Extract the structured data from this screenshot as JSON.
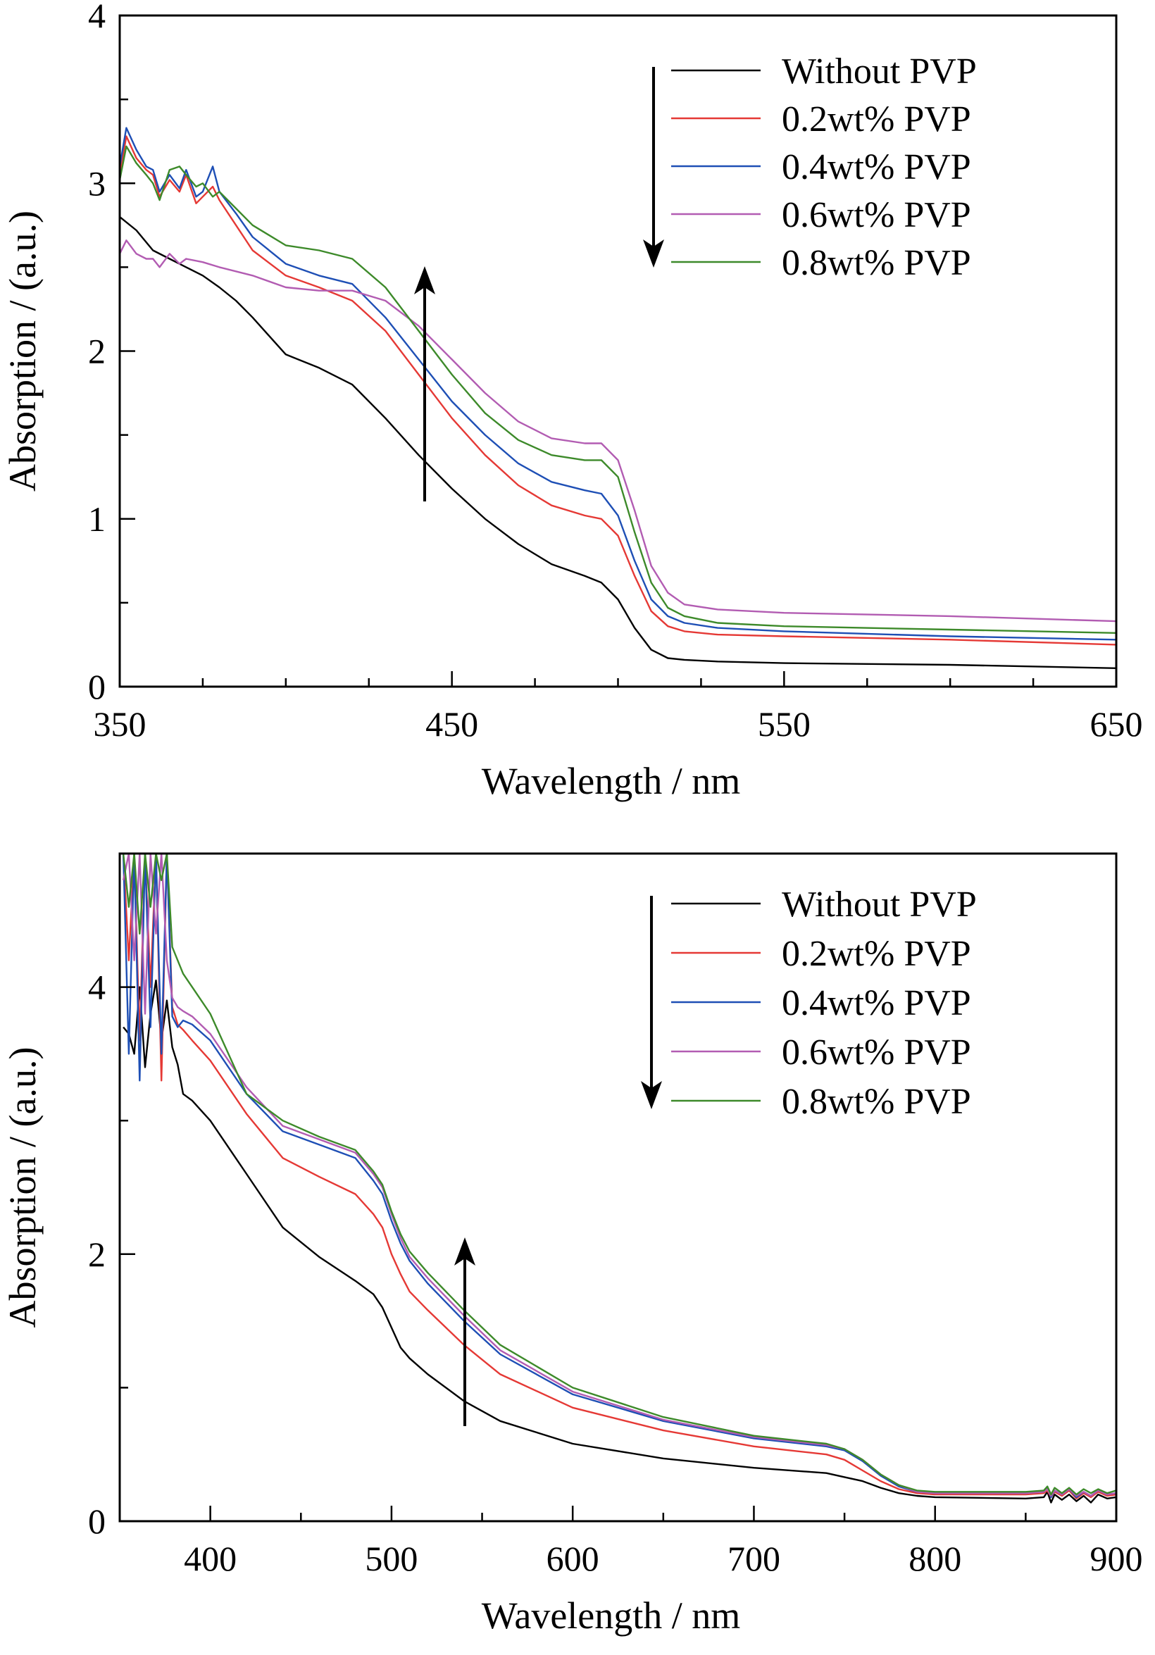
{
  "chart_data": [
    {
      "type": "line",
      "xlabel": "Wavelength / nm",
      "ylabel": "Absorption / (a.u.)",
      "xlim": [
        350,
        650
      ],
      "ylim": [
        0,
        4
      ],
      "xticks": [
        350,
        450,
        550,
        650
      ],
      "yticks": [
        0,
        1,
        2,
        3,
        4
      ],
      "legend_position": "top-right",
      "annotations": [
        "arrow pointing down beside the legend",
        "arrow pointing up across the curves near 443 nm"
      ],
      "series": [
        {
          "name": "Without PVP",
          "color": "#000000",
          "x": [
            350,
            355,
            360,
            365,
            370,
            375,
            380,
            385,
            390,
            400,
            410,
            420,
            430,
            440,
            450,
            460,
            470,
            480,
            490,
            495,
            500,
            505,
            510,
            515,
            520,
            530,
            550,
            600,
            650
          ],
          "y": [
            2.8,
            2.72,
            2.6,
            2.55,
            2.5,
            2.45,
            2.38,
            2.3,
            2.2,
            1.98,
            1.9,
            1.8,
            1.6,
            1.38,
            1.18,
            1.0,
            0.85,
            0.73,
            0.66,
            0.62,
            0.52,
            0.35,
            0.22,
            0.17,
            0.16,
            0.15,
            0.14,
            0.13,
            0.11
          ]
        },
        {
          "name": "0.2wt% PVP",
          "color": "#e53935",
          "x": [
            350,
            352,
            355,
            358,
            360,
            362,
            365,
            368,
            370,
            373,
            375,
            378,
            380,
            385,
            390,
            400,
            410,
            420,
            430,
            440,
            450,
            460,
            470,
            480,
            490,
            495,
            500,
            505,
            510,
            515,
            520,
            530,
            550,
            600,
            650
          ],
          "y": [
            3.05,
            3.28,
            3.15,
            3.08,
            3.05,
            2.92,
            3.02,
            2.95,
            3.05,
            2.88,
            2.92,
            2.98,
            2.9,
            2.75,
            2.6,
            2.45,
            2.38,
            2.3,
            2.12,
            1.86,
            1.6,
            1.38,
            1.2,
            1.08,
            1.02,
            1.0,
            0.9,
            0.66,
            0.45,
            0.36,
            0.33,
            0.31,
            0.3,
            0.28,
            0.25
          ]
        },
        {
          "name": "0.4wt% PVP",
          "color": "#1e4fb5",
          "x": [
            350,
            352,
            355,
            358,
            360,
            362,
            365,
            368,
            370,
            373,
            375,
            378,
            380,
            385,
            390,
            400,
            410,
            420,
            430,
            440,
            450,
            460,
            470,
            480,
            490,
            495,
            500,
            505,
            510,
            515,
            520,
            530,
            550,
            600,
            650
          ],
          "y": [
            3.1,
            3.33,
            3.2,
            3.1,
            3.08,
            2.95,
            3.05,
            2.97,
            3.08,
            2.92,
            2.95,
            3.1,
            2.95,
            2.82,
            2.68,
            2.52,
            2.45,
            2.4,
            2.2,
            1.95,
            1.7,
            1.5,
            1.33,
            1.22,
            1.17,
            1.15,
            1.02,
            0.75,
            0.52,
            0.42,
            0.38,
            0.35,
            0.33,
            0.3,
            0.28
          ]
        },
        {
          "name": "0.6wt% PVP",
          "color": "#b25cb2",
          "x": [
            350,
            352,
            355,
            358,
            360,
            362,
            365,
            368,
            370,
            375,
            380,
            390,
            400,
            410,
            420,
            430,
            440,
            450,
            460,
            470,
            480,
            490,
            495,
            500,
            505,
            510,
            515,
            520,
            530,
            550,
            600,
            650
          ],
          "y": [
            2.58,
            2.66,
            2.58,
            2.55,
            2.55,
            2.5,
            2.58,
            2.52,
            2.55,
            2.53,
            2.5,
            2.45,
            2.38,
            2.36,
            2.36,
            2.3,
            2.15,
            1.95,
            1.75,
            1.58,
            1.48,
            1.45,
            1.45,
            1.35,
            1.05,
            0.72,
            0.56,
            0.49,
            0.46,
            0.44,
            0.42,
            0.39
          ]
        },
        {
          "name": "0.8wt% PVP",
          "color": "#3d8a2a",
          "x": [
            350,
            352,
            355,
            358,
            360,
            362,
            365,
            368,
            370,
            373,
            375,
            378,
            380,
            385,
            390,
            400,
            410,
            420,
            430,
            440,
            450,
            460,
            470,
            480,
            490,
            495,
            500,
            505,
            510,
            515,
            520,
            530,
            550,
            600,
            650
          ],
          "y": [
            3.02,
            3.22,
            3.12,
            3.05,
            3.0,
            2.9,
            3.08,
            3.1,
            3.05,
            2.98,
            3.0,
            2.92,
            2.95,
            2.85,
            2.75,
            2.63,
            2.6,
            2.55,
            2.38,
            2.12,
            1.86,
            1.63,
            1.47,
            1.38,
            1.35,
            1.35,
            1.25,
            0.92,
            0.62,
            0.47,
            0.42,
            0.38,
            0.36,
            0.34,
            0.32
          ]
        }
      ]
    },
    {
      "type": "line",
      "xlabel": "Wavelength / nm",
      "ylabel": "Absorption / (a.u.)",
      "xlim": [
        350,
        900
      ],
      "ylim": [
        0,
        5
      ],
      "xticks": [
        400,
        500,
        600,
        700,
        800,
        900
      ],
      "yticks": [
        0,
        2,
        4
      ],
      "legend_position": "top-right",
      "annotations": [
        "arrow pointing down beside the legend",
        "arrow pointing up across the curves near 540 nm"
      ],
      "series": [
        {
          "name": "Without PVP",
          "color": "#000000",
          "x": [
            352,
            355,
            358,
            361,
            364,
            367,
            370,
            373,
            376,
            379,
            382,
            385,
            390,
            400,
            420,
            440,
            460,
            480,
            490,
            495,
            500,
            505,
            510,
            520,
            540,
            560,
            600,
            650,
            700,
            740,
            750,
            760,
            770,
            780,
            790,
            800,
            850,
            860,
            862,
            864,
            866,
            870,
            874,
            878,
            882,
            886,
            890,
            895,
            900
          ],
          "y": [
            3.7,
            3.65,
            3.5,
            4.0,
            3.4,
            3.8,
            4.05,
            3.6,
            3.9,
            3.55,
            3.42,
            3.2,
            3.15,
            3.0,
            2.6,
            2.2,
            1.98,
            1.8,
            1.7,
            1.6,
            1.45,
            1.3,
            1.22,
            1.1,
            0.9,
            0.75,
            0.58,
            0.47,
            0.4,
            0.36,
            0.33,
            0.3,
            0.25,
            0.21,
            0.19,
            0.18,
            0.17,
            0.18,
            0.22,
            0.14,
            0.2,
            0.16,
            0.2,
            0.15,
            0.19,
            0.14,
            0.2,
            0.17,
            0.18
          ]
        },
        {
          "name": "0.2wt% PVP",
          "color": "#e53935",
          "x": [
            352,
            355,
            358,
            361,
            364,
            367,
            370,
            373,
            376,
            379,
            382,
            385,
            390,
            400,
            420,
            440,
            460,
            480,
            490,
            495,
            500,
            505,
            510,
            520,
            540,
            560,
            600,
            650,
            700,
            740,
            750,
            760,
            770,
            780,
            790,
            800,
            850,
            860,
            862,
            864,
            866,
            870,
            874,
            878,
            882,
            886,
            890,
            895,
            900
          ],
          "y": [
            5.0,
            4.2,
            5.0,
            3.6,
            5.0,
            4.0,
            5.0,
            3.3,
            5.0,
            3.85,
            3.72,
            3.68,
            3.6,
            3.45,
            3.05,
            2.72,
            2.58,
            2.45,
            2.3,
            2.2,
            2.0,
            1.85,
            1.72,
            1.58,
            1.32,
            1.1,
            0.85,
            0.68,
            0.56,
            0.5,
            0.46,
            0.38,
            0.3,
            0.24,
            0.21,
            0.2,
            0.2,
            0.21,
            0.23,
            0.18,
            0.22,
            0.19,
            0.23,
            0.17,
            0.21,
            0.18,
            0.22,
            0.19,
            0.2
          ]
        },
        {
          "name": "0.4wt% PVP",
          "color": "#1e4fb5",
          "x": [
            352,
            355,
            358,
            361,
            364,
            367,
            370,
            373,
            376,
            379,
            382,
            385,
            390,
            400,
            420,
            440,
            460,
            480,
            490,
            495,
            500,
            505,
            510,
            520,
            540,
            560,
            600,
            650,
            700,
            740,
            750,
            760,
            770,
            780,
            790,
            800,
            850,
            860,
            862,
            864,
            866,
            870,
            874,
            878,
            882,
            886,
            890,
            895,
            900
          ],
          "y": [
            5.0,
            3.5,
            5.0,
            3.3,
            5.0,
            3.7,
            5.0,
            3.5,
            5.0,
            3.78,
            3.7,
            3.75,
            3.72,
            3.6,
            3.2,
            2.92,
            2.82,
            2.72,
            2.55,
            2.45,
            2.25,
            2.08,
            1.95,
            1.78,
            1.5,
            1.25,
            0.95,
            0.75,
            0.62,
            0.56,
            0.53,
            0.45,
            0.34,
            0.26,
            0.22,
            0.21,
            0.21,
            0.22,
            0.25,
            0.18,
            0.23,
            0.2,
            0.24,
            0.18,
            0.22,
            0.19,
            0.23,
            0.2,
            0.21
          ]
        },
        {
          "name": "0.6wt% PVP",
          "color": "#b25cb2",
          "x": [
            352,
            355,
            358,
            361,
            364,
            367,
            370,
            373,
            376,
            379,
            382,
            385,
            390,
            400,
            420,
            440,
            460,
            480,
            490,
            495,
            500,
            505,
            510,
            520,
            540,
            560,
            600,
            650,
            700,
            740,
            750,
            760,
            770,
            780,
            790,
            800,
            850,
            860,
            862,
            864,
            866,
            870,
            874,
            878,
            882,
            886,
            890,
            895,
            900
          ],
          "y": [
            4.8,
            5.0,
            4.2,
            5.0,
            3.8,
            5.0,
            4.4,
            5.0,
            4.2,
            3.92,
            3.85,
            3.82,
            3.78,
            3.65,
            3.25,
            2.96,
            2.86,
            2.76,
            2.6,
            2.5,
            2.3,
            2.12,
            1.98,
            1.82,
            1.54,
            1.28,
            0.97,
            0.76,
            0.63,
            0.57,
            0.54,
            0.46,
            0.35,
            0.27,
            0.22,
            0.21,
            0.21,
            0.22,
            0.24,
            0.19,
            0.23,
            0.2,
            0.24,
            0.19,
            0.22,
            0.19,
            0.23,
            0.2,
            0.21
          ]
        },
        {
          "name": "0.8wt% PVP",
          "color": "#3d8a2a",
          "x": [
            352,
            355,
            358,
            361,
            364,
            367,
            370,
            373,
            376,
            379,
            382,
            385,
            390,
            400,
            420,
            440,
            460,
            480,
            490,
            495,
            500,
            505,
            510,
            520,
            540,
            560,
            600,
            650,
            700,
            740,
            750,
            760,
            770,
            780,
            790,
            800,
            850,
            860,
            862,
            864,
            866,
            870,
            874,
            878,
            882,
            886,
            890,
            895,
            900
          ],
          "y": [
            5.0,
            4.6,
            5.0,
            4.4,
            5.0,
            4.6,
            5.0,
            4.8,
            5.0,
            4.3,
            4.2,
            4.1,
            4.0,
            3.8,
            3.2,
            3.0,
            2.88,
            2.78,
            2.62,
            2.52,
            2.32,
            2.15,
            2.02,
            1.86,
            1.58,
            1.32,
            1.0,
            0.78,
            0.64,
            0.58,
            0.54,
            0.46,
            0.35,
            0.27,
            0.23,
            0.22,
            0.22,
            0.23,
            0.26,
            0.2,
            0.25,
            0.21,
            0.25,
            0.2,
            0.24,
            0.21,
            0.24,
            0.21,
            0.23
          ]
        }
      ]
    }
  ]
}
